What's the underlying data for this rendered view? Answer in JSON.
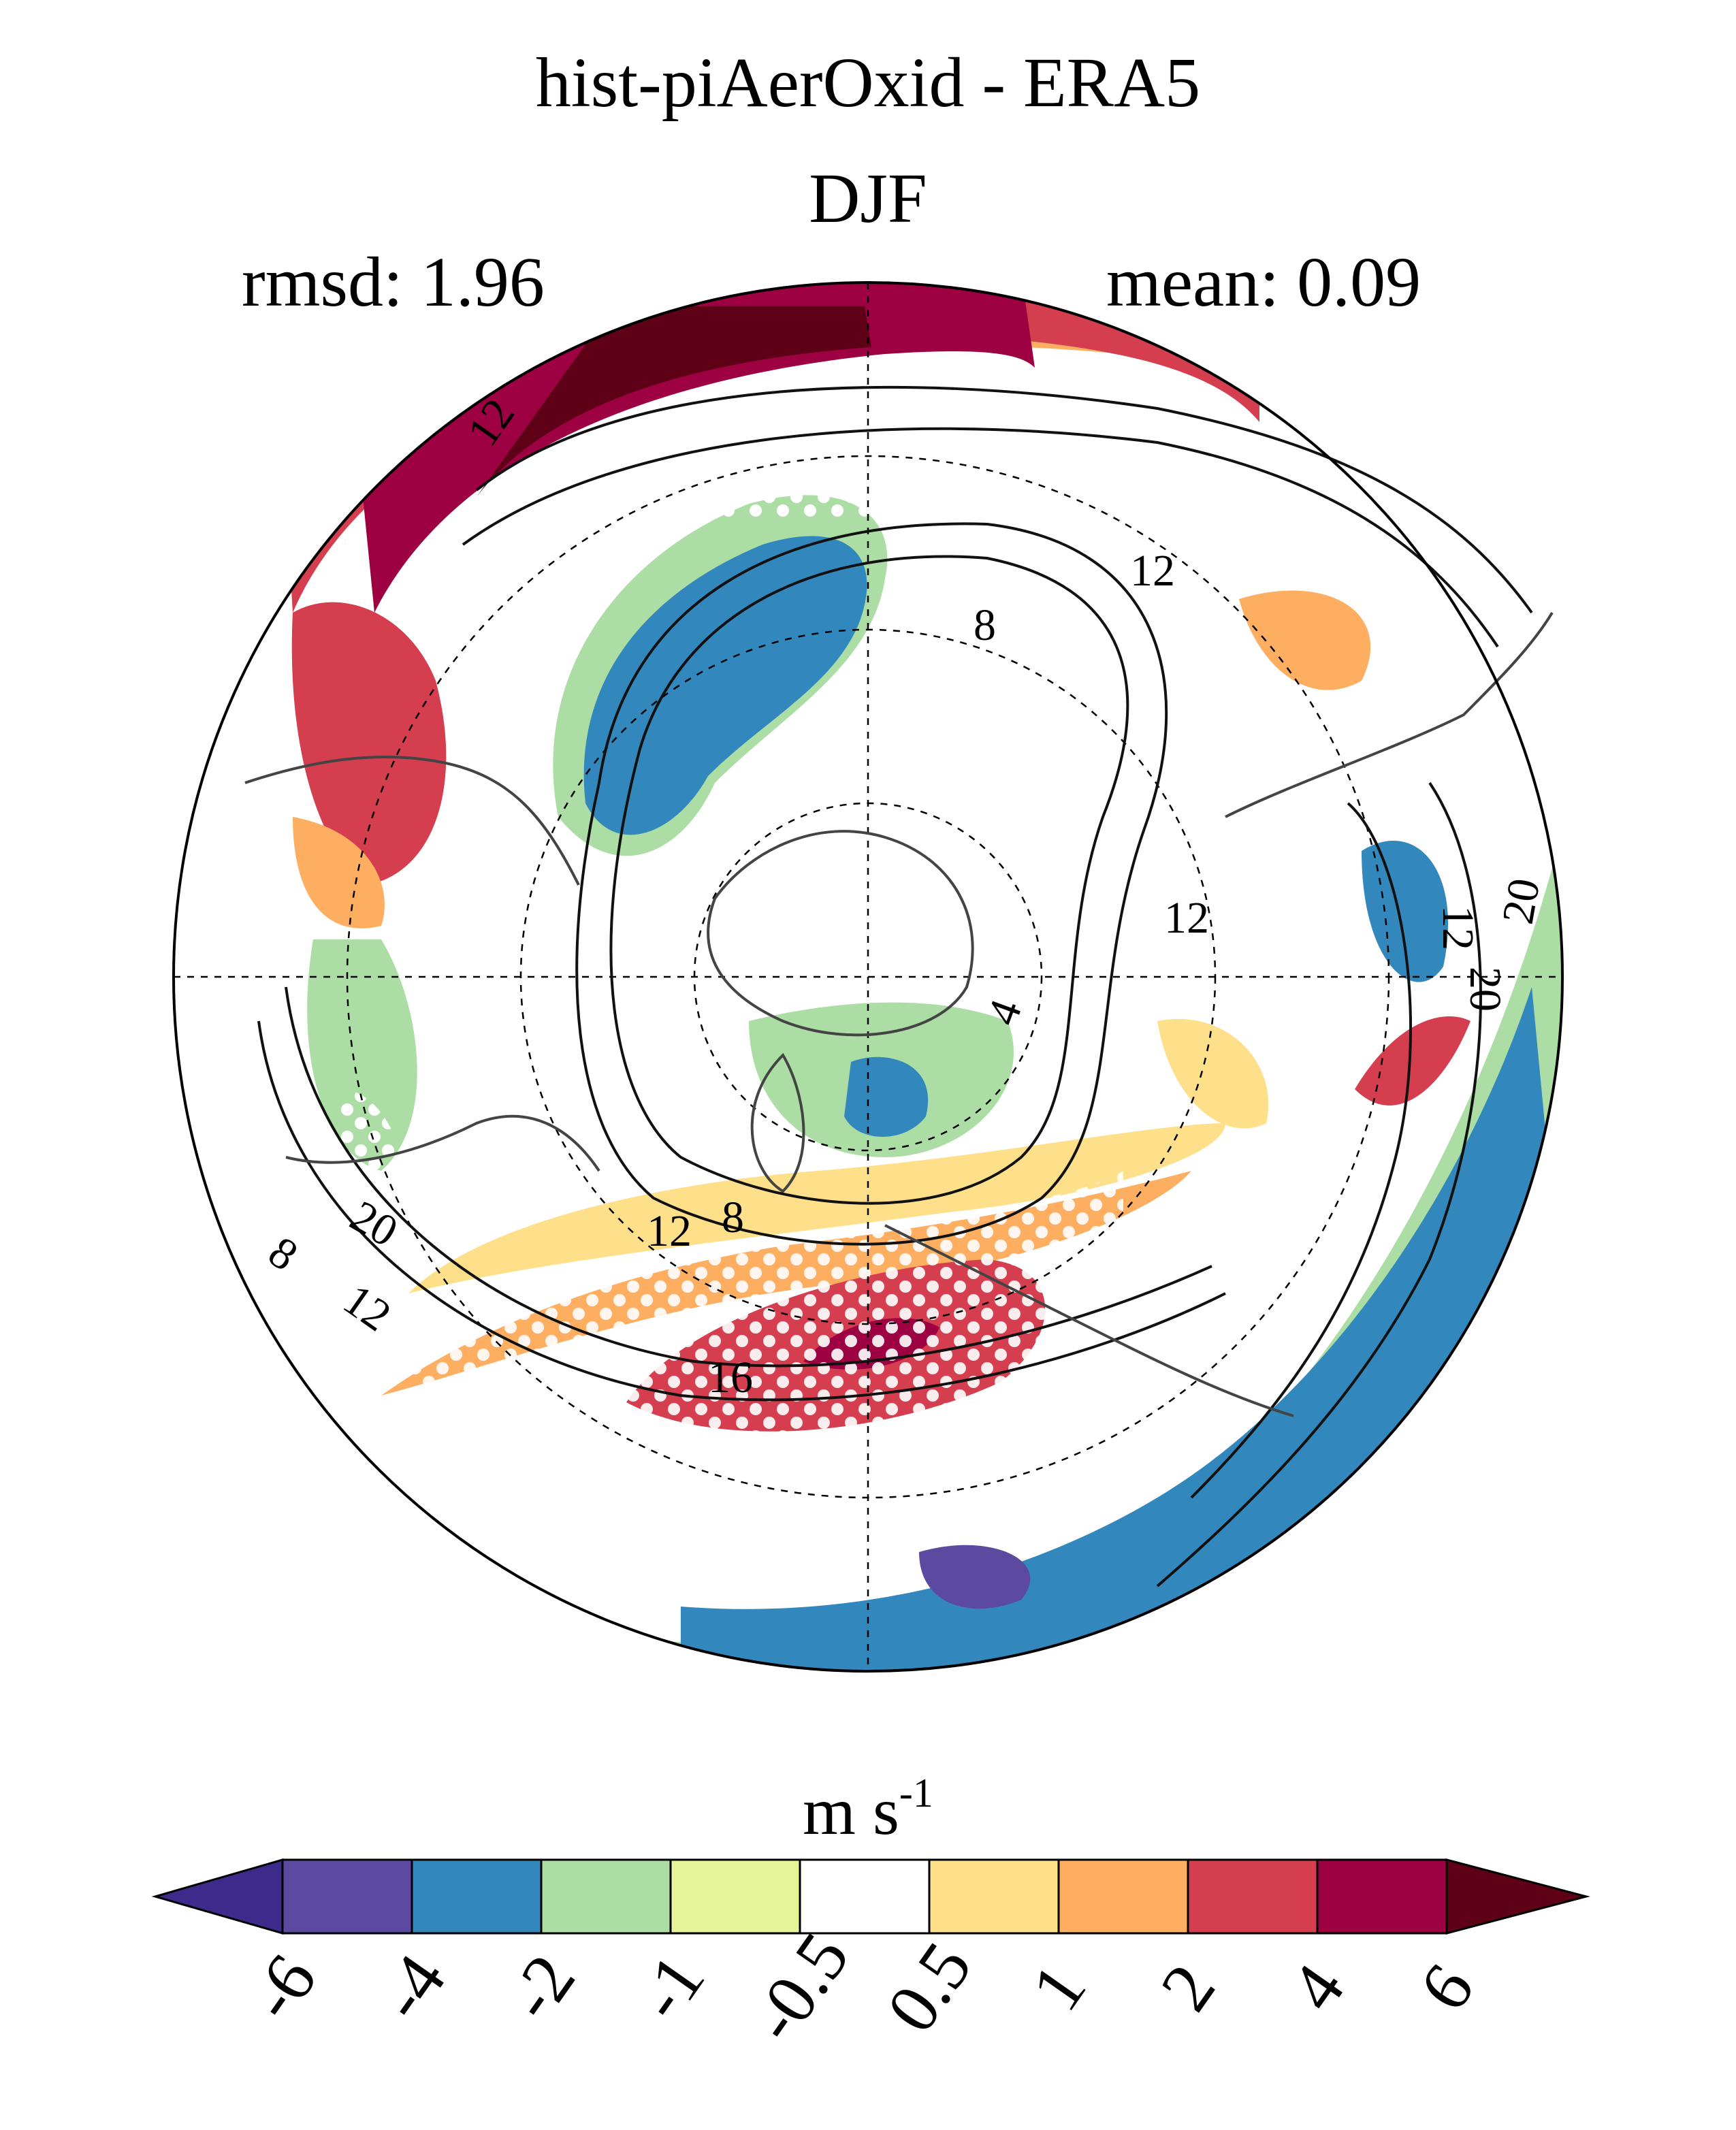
{
  "title": "hist-piAerOxid - ERA5",
  "season": "DJF",
  "stats": {
    "rmsd_label": "rmsd: 1.96",
    "mean_label": "mean: 0.09"
  },
  "units": {
    "base": "m s",
    "exponent": "-1"
  },
  "colorbar": {
    "levels": [
      "-6",
      "-4",
      "-2",
      "-1",
      "-0.5",
      "0.5",
      "1",
      "2",
      "4",
      "6"
    ],
    "colors": [
      "#3e2a8a",
      "#5c4aa1",
      "#3288bd",
      "#abdda4",
      "#e6f598",
      "#ffffff",
      "#fee08b",
      "#fdae61",
      "#d53e4f",
      "#9e0142",
      "#5e0016"
    ]
  },
  "contour_labels": [
    "12",
    "8",
    "12",
    "20",
    "8",
    "12",
    "12",
    "8",
    "16",
    "20",
    "12",
    "20",
    "4",
    "12"
  ],
  "map": {
    "projection": "north polar stereographic",
    "stippling": "white dots"
  }
}
